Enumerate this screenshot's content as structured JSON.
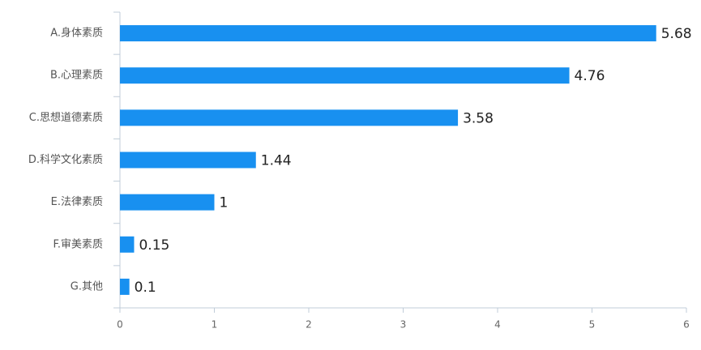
{
  "chart_data": {
    "type": "bar",
    "orientation": "horizontal",
    "categories": [
      "A.身体素质",
      "B.心理素质",
      "C.思想道德素质",
      "D.科学文化素质",
      "E.法律素质",
      "F.审美素质",
      "G.其他"
    ],
    "values": [
      5.68,
      4.76,
      3.58,
      1.44,
      1,
      0.15,
      0.1
    ],
    "color": "#1890f0",
    "xlim": [
      0,
      6
    ],
    "xticks": [
      0,
      1,
      2,
      3,
      4,
      5,
      6
    ],
    "grid": false
  }
}
